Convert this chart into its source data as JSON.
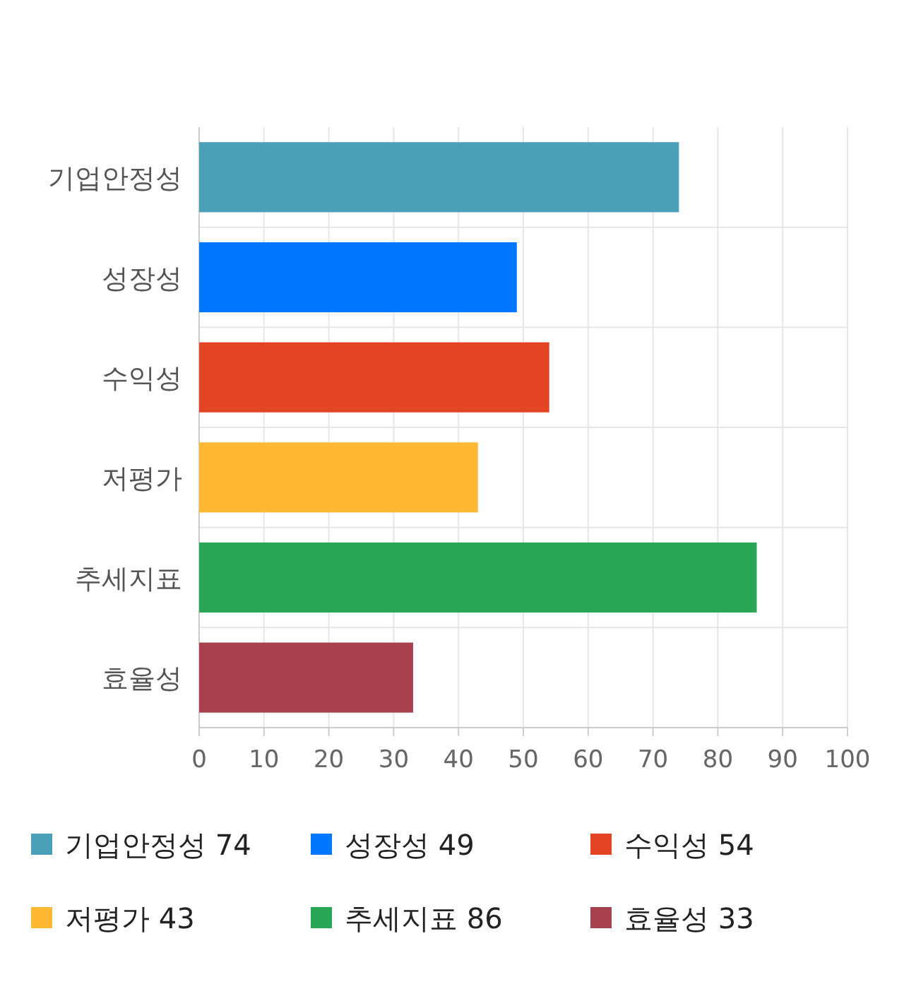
{
  "chart_data": {
    "type": "bar",
    "orientation": "horizontal",
    "categories": [
      "기업안정성",
      "성장성",
      "수익성",
      "저평가",
      "추세지표",
      "효율성"
    ],
    "series": [
      {
        "name": "기업안정성 74",
        "color": "#4aa0b9",
        "values": [
          74,
          null,
          null,
          null,
          null,
          null
        ]
      },
      {
        "name": "성장성 49",
        "color": "#0077ff",
        "values": [
          null,
          49,
          null,
          null,
          null,
          null
        ]
      },
      {
        "name": "수익성 54",
        "color": "#e34524",
        "values": [
          null,
          null,
          54,
          null,
          null,
          null
        ]
      },
      {
        "name": "저평가 43",
        "color": "#ffb833",
        "values": [
          null,
          null,
          null,
          43,
          null,
          null
        ]
      },
      {
        "name": "추세지표 86",
        "color": "#28a656",
        "values": [
          null,
          null,
          null,
          null,
          86,
          null
        ]
      },
      {
        "name": "효율성 33",
        "color": "#a8414e",
        "values": [
          null,
          null,
          null,
          null,
          null,
          33
        ]
      }
    ],
    "xlim": [
      0,
      100
    ],
    "xticks": [
      0,
      10,
      20,
      30,
      40,
      50,
      60,
      70,
      80,
      90,
      100
    ],
    "grid": true,
    "legend": "bottom"
  }
}
